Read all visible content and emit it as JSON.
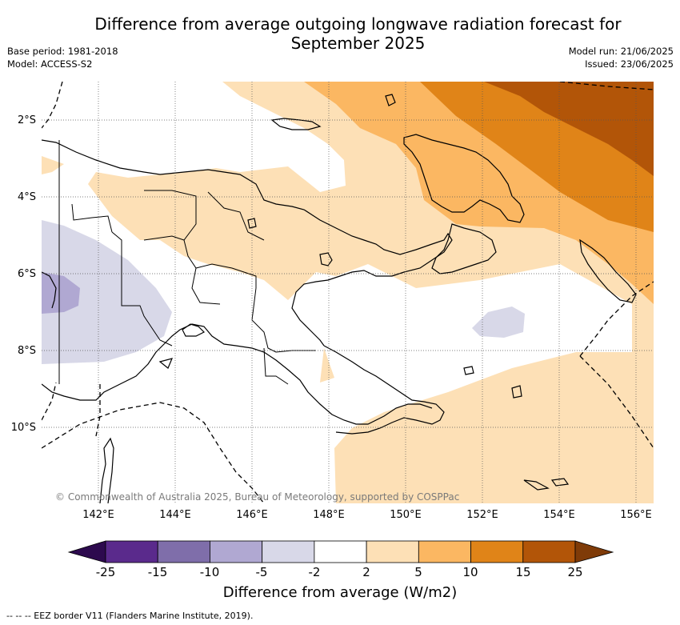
{
  "title_line1": "Difference from average outgoing longwave radiation forecast for",
  "title_line2": "September 2025",
  "base_period": "Base period: 1981-2018",
  "model": "Model: ACCESS-S2",
  "model_run": "Model run: 21/06/2025",
  "issued": "Issued: 23/06/2025",
  "lat_labels": [
    "2°S",
    "4°S",
    "6°S",
    "8°S",
    "10°S"
  ],
  "lon_labels": [
    "142°E",
    "144°E",
    "146°E",
    "148°E",
    "150°E",
    "152°E",
    "154°E",
    "156°E"
  ],
  "copyright": "© Commonwealth of Australia 2025, Bureau of Meteorology, supported by COSPPac",
  "colorbar": {
    "ticks": [
      "-25",
      "-15",
      "-10",
      "-5",
      "-2",
      "2",
      "5",
      "10",
      "15",
      "25"
    ],
    "colors": [
      "#5a2a8c",
      "#7f6eaa",
      "#b0a8d2",
      "#d8d8e8",
      "#ffffff",
      "#fde0b6",
      "#fbb762",
      "#e08418",
      "#b25508"
    ],
    "under_color": "#2d0a4e",
    "over_color": "#7f3b08",
    "label": "Difference from average (W/m2)"
  },
  "footnote": "--  --  -- EEZ border V11 (Flanders Marine Institute, 2019)."
}
